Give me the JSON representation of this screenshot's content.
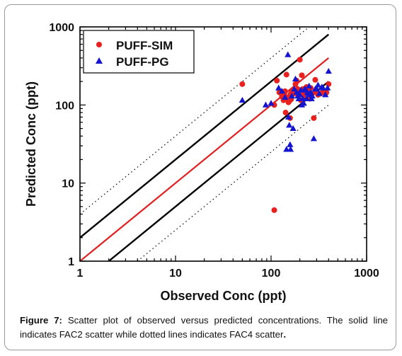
{
  "chart_data": {
    "type": "scatter",
    "xlabel": "Observed Conc (ppt)",
    "ylabel": "Predicted Conc (ppt)",
    "xscale": "log",
    "yscale": "log",
    "xlim": [
      1,
      1000
    ],
    "ylim": [
      1,
      1000
    ],
    "xticks": [
      "1",
      "10",
      "100",
      "1000"
    ],
    "yticks": [
      "1",
      "10",
      "100",
      "1000"
    ],
    "grid": false,
    "legend_position": "top-left",
    "reference_lines": [
      {
        "type": "1:1",
        "factor": 1,
        "color": "#e02020",
        "style": "solid"
      },
      {
        "type": "FAC2",
        "factors": [
          2,
          0.5
        ],
        "color": "#000000",
        "style": "solid"
      },
      {
        "type": "FAC4",
        "factors": [
          4,
          0.25
        ],
        "color": "#000000",
        "style": "dotted"
      }
    ],
    "series": [
      {
        "name": "PUFF-SIM",
        "marker": "circle",
        "color": "#e8201e",
        "x": [
          50,
          108,
          108,
          115,
          122,
          128,
          130,
          135,
          138,
          140,
          142,
          145,
          148,
          150,
          152,
          155,
          158,
          160,
          162,
          165,
          168,
          170,
          175,
          180,
          185,
          190,
          195,
          200,
          205,
          210,
          215,
          220,
          225,
          230,
          235,
          240,
          250,
          255,
          260,
          270,
          280,
          290,
          300,
          310,
          330,
          350,
          370,
          380,
          400
        ],
        "y": [
          185,
          100,
          4.5,
          205,
          145,
          148,
          128,
          115,
          140,
          150,
          80,
          245,
          120,
          125,
          108,
          112,
          68,
          138,
          118,
          150,
          145,
          145,
          140,
          185,
          205,
          160,
          150,
          380,
          115,
          240,
          160,
          140,
          120,
          145,
          170,
          150,
          160,
          120,
          165,
          140,
          68,
          210,
          145,
          135,
          140,
          148,
          138,
          145,
          185
        ]
      },
      {
        "name": "PUFF-PG",
        "marker": "triangle",
        "color": "#1515d0",
        "x": [
          50,
          88,
          100,
          120,
          130,
          140,
          145,
          150,
          152,
          155,
          158,
          160,
          165,
          170,
          175,
          180,
          185,
          190,
          195,
          200,
          205,
          210,
          215,
          220,
          225,
          230,
          235,
          240,
          245,
          250,
          255,
          260,
          265,
          270,
          280,
          290,
          300,
          310,
          320,
          340,
          350,
          370,
          390,
          400
        ],
        "y": [
          115,
          100,
          105,
          165,
          150,
          125,
          27,
          440,
          70,
          55,
          31,
          27,
          130,
          50,
          160,
          215,
          145,
          130,
          120,
          135,
          155,
          100,
          120,
          105,
          160,
          155,
          120,
          145,
          140,
          175,
          135,
          145,
          120,
          130,
          37,
          160,
          160,
          180,
          140,
          170,
          165,
          135,
          165,
          270
        ]
      }
    ]
  },
  "caption": {
    "label": "Figure 7:",
    "text": " Scatter plot of observed versus predicted concentrations. The solid line indicates FAC2 scatter while dotted lines indicates FAC4 scatter",
    "end": "."
  }
}
